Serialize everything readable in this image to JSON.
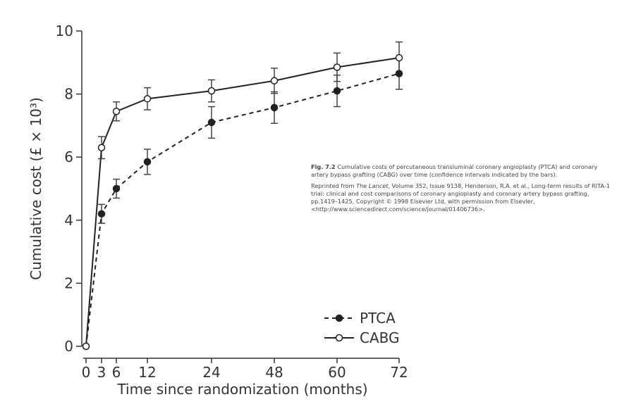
{
  "chart_data": {
    "type": "line",
    "y_label": "Cumulative cost (£ × 10³)",
    "x_label": "Time since randomization (months)",
    "categories": [
      "0",
      "3",
      "6",
      "12",
      "24",
      "48",
      "60",
      "72"
    ],
    "series": [
      {
        "name": "PTCA",
        "color": "#222222",
        "marker": "filled",
        "linestyle": "dashed",
        "values": [
          0,
          4.2,
          5.0,
          5.85,
          7.1,
          7.57,
          8.1,
          8.65
        ],
        "errors": [
          null,
          0.3,
          0.3,
          0.4,
          0.5,
          0.5,
          0.5,
          0.5
        ]
      },
      {
        "name": "CABG",
        "color": "#222222",
        "marker": "open",
        "linestyle": "solid",
        "values": [
          0,
          6.3,
          7.45,
          7.85,
          8.1,
          8.42,
          8.85,
          9.15
        ],
        "errors": [
          null,
          0.35,
          0.3,
          0.35,
          0.35,
          0.4,
          0.45,
          0.5
        ]
      }
    ],
    "ylim": [
      0,
      10
    ],
    "yticks": [
      0,
      2,
      4,
      6,
      8,
      10
    ],
    "grid": false,
    "legend": "lower right",
    "caption": {
      "label": "Fig. 7.2",
      "text": "Cumulative costs of percutaneous transluminal coronary angioplasty (PTCA) and coronary artery bypass grafting (CABG) over time (confidence intervals indicated by the bars)."
    },
    "credit": {
      "before": "Reprinted from ",
      "journal": "The Lancet",
      "after": ", Volume 352, Issue 9138, Henderson, R.A. et al., Long-term results of RITA-1 trial: clinical and cost comparisons of coronary angioplasty and coronary artery bypass grafting, pp.1419–1425, Copyright © 1998 Elsevier Ltd, with permission from Elsevier, <http://www.sciencedirect.com/science/journal/01406736>."
    }
  }
}
